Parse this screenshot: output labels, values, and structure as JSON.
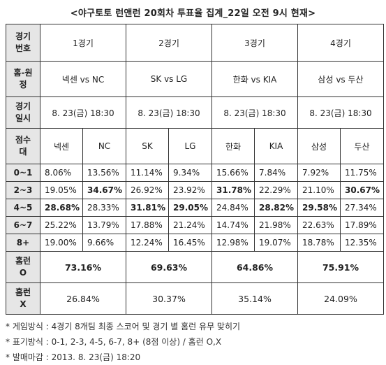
{
  "title": "<야구토토 런앤런 20회차 투표율 집계_22일 오전 9시 현재>",
  "rows": {
    "game_no": {
      "label": "경기\n번호",
      "values": [
        "1경기",
        "2경기",
        "3경기",
        "4경기"
      ]
    },
    "home_away": {
      "label": "홈-원\n정",
      "values": [
        "넥센 vs NC",
        "SK vs LG",
        "한화 vs KIA",
        "삼성 vs 두산"
      ]
    },
    "datetime": {
      "label": "경기\n일시",
      "values": [
        "8. 23(금) 18:30",
        "8. 23(금) 18:30",
        "8. 23(금) 18:30",
        "8. 23(금) 18:30"
      ]
    }
  },
  "score_header": {
    "label": "점수\n대",
    "teams": [
      "넥센",
      "NC",
      "SK",
      "LG",
      "한화",
      "KIA",
      "삼성",
      "두산"
    ]
  },
  "score_rows": [
    {
      "label": "0~1",
      "values": [
        "8.06%",
        "13.56%",
        "11.14%",
        "9.34%",
        "15.66%",
        "7.84%",
        "7.92%",
        "11.75%"
      ],
      "bold": [
        false,
        false,
        false,
        false,
        false,
        false,
        false,
        false
      ]
    },
    {
      "label": "2~3",
      "values": [
        "19.05%",
        "34.67%",
        "26.92%",
        "23.92%",
        "31.78%",
        "22.29%",
        "21.10%",
        "30.67%"
      ],
      "bold": [
        false,
        true,
        false,
        false,
        true,
        false,
        false,
        true
      ]
    },
    {
      "label": "4~5",
      "values": [
        "28.68%",
        "28.33%",
        "31.81%",
        "29.05%",
        "24.84%",
        "28.82%",
        "29.58%",
        "27.34%"
      ],
      "bold": [
        true,
        false,
        true,
        true,
        false,
        true,
        true,
        false
      ]
    },
    {
      "label": "6~7",
      "values": [
        "25.22%",
        "13.79%",
        "17.88%",
        "21.24%",
        "14.74%",
        "21.98%",
        "22.63%",
        "17.89%"
      ],
      "bold": [
        false,
        false,
        false,
        false,
        false,
        false,
        false,
        false
      ]
    },
    {
      "label": "8+",
      "values": [
        "19.00%",
        "9.66%",
        "12.24%",
        "16.45%",
        "12.98%",
        "19.07%",
        "18.78%",
        "12.35%"
      ],
      "bold": [
        false,
        false,
        false,
        false,
        false,
        false,
        false,
        false
      ]
    }
  ],
  "homerun_o": {
    "label": "홈런\nO",
    "values": [
      "73.16%",
      "69.63%",
      "64.86%",
      "75.91%"
    ]
  },
  "homerun_x": {
    "label": "홈런\nX",
    "values": [
      "26.84%",
      "30.37%",
      "35.14%",
      "24.09%"
    ]
  },
  "notes": [
    "* 게임방식 : 4경기 8개팀 최종 스코어 및 경기 별 홈런 유무 맞히기",
    "* 표기방식 : 0-1, 2-3, 4-5, 6-7, 8+ (8점 이상) / 홈런 O,X",
    "* 발매마감 : 2013. 8. 23(금) 18:20"
  ]
}
